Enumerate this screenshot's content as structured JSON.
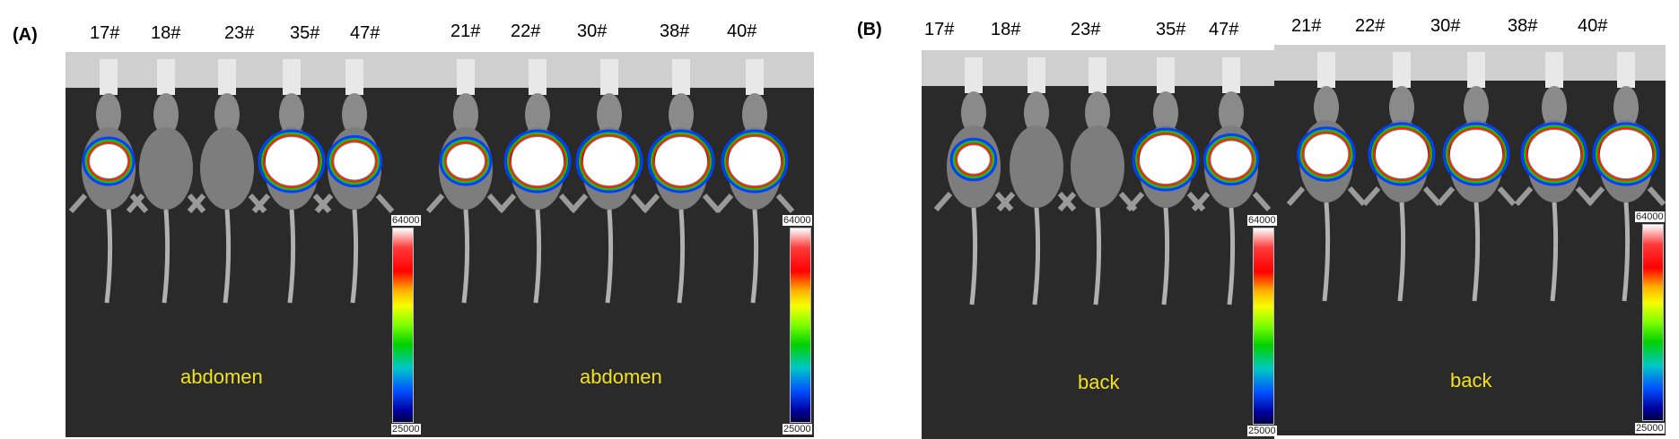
{
  "panels": [
    {
      "label": "(A)",
      "groups": [
        {
          "ids": [
            "17#",
            "18#",
            "23#",
            "35#",
            "47#"
          ],
          "site": "abdomen",
          "scale": {
            "max": "64000",
            "min": "25000"
          }
        },
        {
          "ids": [
            "21#",
            "22#",
            "30#",
            "38#",
            "40#"
          ],
          "site": "abdomen",
          "scale": {
            "max": "64000",
            "min": "25000"
          }
        }
      ]
    },
    {
      "label": "(B)",
      "groups": [
        {
          "ids": [
            "17#",
            "18#",
            "23#",
            "35#",
            "47#"
          ],
          "site": "back",
          "scale": {
            "max": "64000",
            "min": "25000"
          }
        },
        {
          "ids": [
            "21#",
            "22#",
            "30#",
            "38#",
            "40#"
          ],
          "site": "back",
          "scale": {
            "max": "64000",
            "min": "25000"
          }
        }
      ]
    }
  ],
  "colors": {
    "photo_background": "#2a2a2a",
    "site_text": "#f2e21b",
    "signal_core": "#ffffff"
  }
}
